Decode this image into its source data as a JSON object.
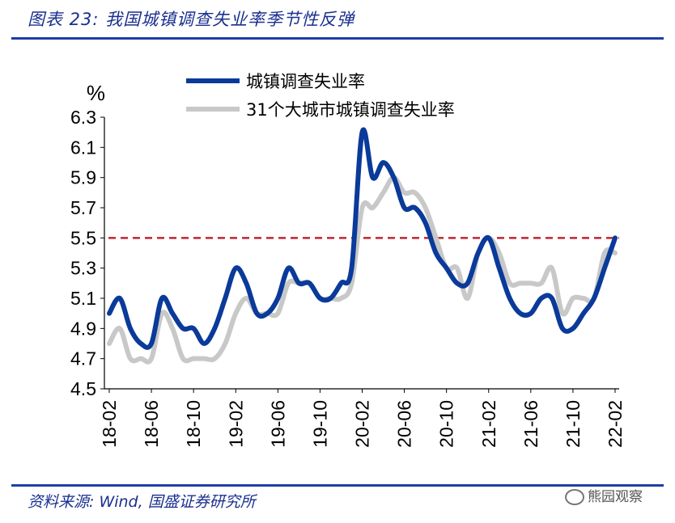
{
  "header": {
    "title": "图表 23:  我国城镇调查失业率季节性反弹"
  },
  "footer": {
    "source": "资料来源:  Wind,  国盛证券研究所",
    "watermark": "熊园观察"
  },
  "colors": {
    "series1": "#0a3a9a",
    "series2": "#c8c8c8",
    "reference": "#c0262e",
    "accent": "#1f3ea5"
  },
  "chart_data": {
    "type": "line",
    "title": "",
    "ylabel": "%",
    "xlabel": "",
    "ylim": [
      4.5,
      6.3
    ],
    "yticks": [
      "4.5",
      "4.7",
      "4.9",
      "5.1",
      "5.3",
      "5.5",
      "5.7",
      "5.9",
      "6.1",
      "6.3"
    ],
    "xticks": [
      "18-02",
      "18-06",
      "18-10",
      "19-02",
      "19-06",
      "19-10",
      "20-02",
      "20-06",
      "20-10",
      "21-02",
      "21-06",
      "21-10",
      "22-02"
    ],
    "reference_line": {
      "value": 5.5,
      "style": "dashed"
    },
    "x": [
      "18-02",
      "18-03",
      "18-04",
      "18-05",
      "18-06",
      "18-07",
      "18-08",
      "18-09",
      "18-10",
      "18-11",
      "18-12",
      "19-01",
      "19-02",
      "19-03",
      "19-04",
      "19-05",
      "19-06",
      "19-07",
      "19-08",
      "19-09",
      "19-10",
      "19-11",
      "19-12",
      "20-01",
      "20-02",
      "20-03",
      "20-04",
      "20-05",
      "20-06",
      "20-07",
      "20-08",
      "20-09",
      "20-10",
      "20-11",
      "20-12",
      "21-01",
      "21-02",
      "21-03",
      "21-04",
      "21-05",
      "21-06",
      "21-07",
      "21-08",
      "21-09",
      "21-10",
      "21-11",
      "21-12",
      "22-01",
      "22-02"
    ],
    "series": [
      {
        "name": "城镇调查失业率",
        "values": [
          5.0,
          5.1,
          4.9,
          4.8,
          4.8,
          5.1,
          5.0,
          4.9,
          4.9,
          4.8,
          4.9,
          5.1,
          5.3,
          5.2,
          5.0,
          5.0,
          5.1,
          5.3,
          5.2,
          5.2,
          5.1,
          5.1,
          5.2,
          5.3,
          6.2,
          5.9,
          6.0,
          5.9,
          5.7,
          5.7,
          5.6,
          5.4,
          5.3,
          5.2,
          5.2,
          5.4,
          5.5,
          5.3,
          5.1,
          5.0,
          5.0,
          5.1,
          5.1,
          4.9,
          4.9,
          5.0,
          5.1,
          5.3,
          5.5
        ]
      },
      {
        "name": "31个大城市城镇调查失业率",
        "values": [
          4.8,
          4.9,
          4.7,
          4.7,
          4.7,
          5.0,
          4.9,
          4.7,
          4.7,
          4.7,
          4.7,
          4.8,
          5.0,
          5.1,
          5.0,
          5.0,
          5.0,
          5.2,
          5.2,
          5.2,
          5.1,
          5.1,
          5.1,
          5.2,
          5.7,
          5.7,
          5.8,
          5.9,
          5.8,
          5.8,
          5.7,
          5.5,
          5.3,
          5.3,
          5.1,
          5.4,
          5.5,
          5.4,
          5.2,
          5.2,
          5.2,
          5.2,
          5.3,
          5.0,
          5.1,
          5.1,
          5.1,
          5.4,
          5.4
        ]
      }
    ]
  }
}
